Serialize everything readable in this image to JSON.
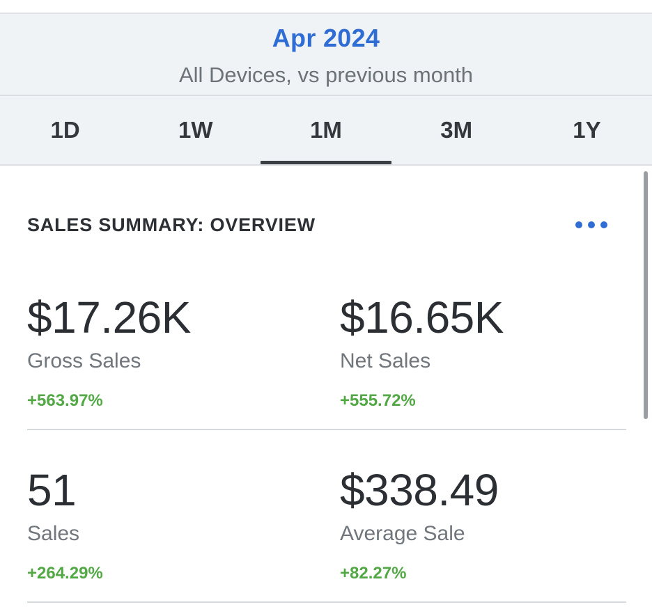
{
  "header": {
    "period": "Apr 2024",
    "subtitle": "All Devices, vs previous month",
    "tabs": [
      {
        "label": "1D",
        "active": false
      },
      {
        "label": "1W",
        "active": false
      },
      {
        "label": "1M",
        "active": true
      },
      {
        "label": "3M",
        "active": false
      },
      {
        "label": "1Y",
        "active": false
      }
    ]
  },
  "summary": {
    "title": "SALES SUMMARY: OVERVIEW",
    "more_icon": "more-horizontal-icon",
    "metrics": [
      {
        "value": "$17.26K",
        "label": "Gross Sales",
        "change": "+563.97%"
      },
      {
        "value": "$16.65K",
        "label": "Net Sales",
        "change": "+555.72%"
      },
      {
        "value": "51",
        "label": "Sales",
        "change": "+264.29%"
      },
      {
        "value": "$338.49",
        "label": "Average Sale",
        "change": "+82.27%"
      }
    ]
  },
  "colors": {
    "accent": "#2f6dd4",
    "positive": "#52a844",
    "header_bg": "#f0f3f5",
    "text": "#2b2f33"
  }
}
